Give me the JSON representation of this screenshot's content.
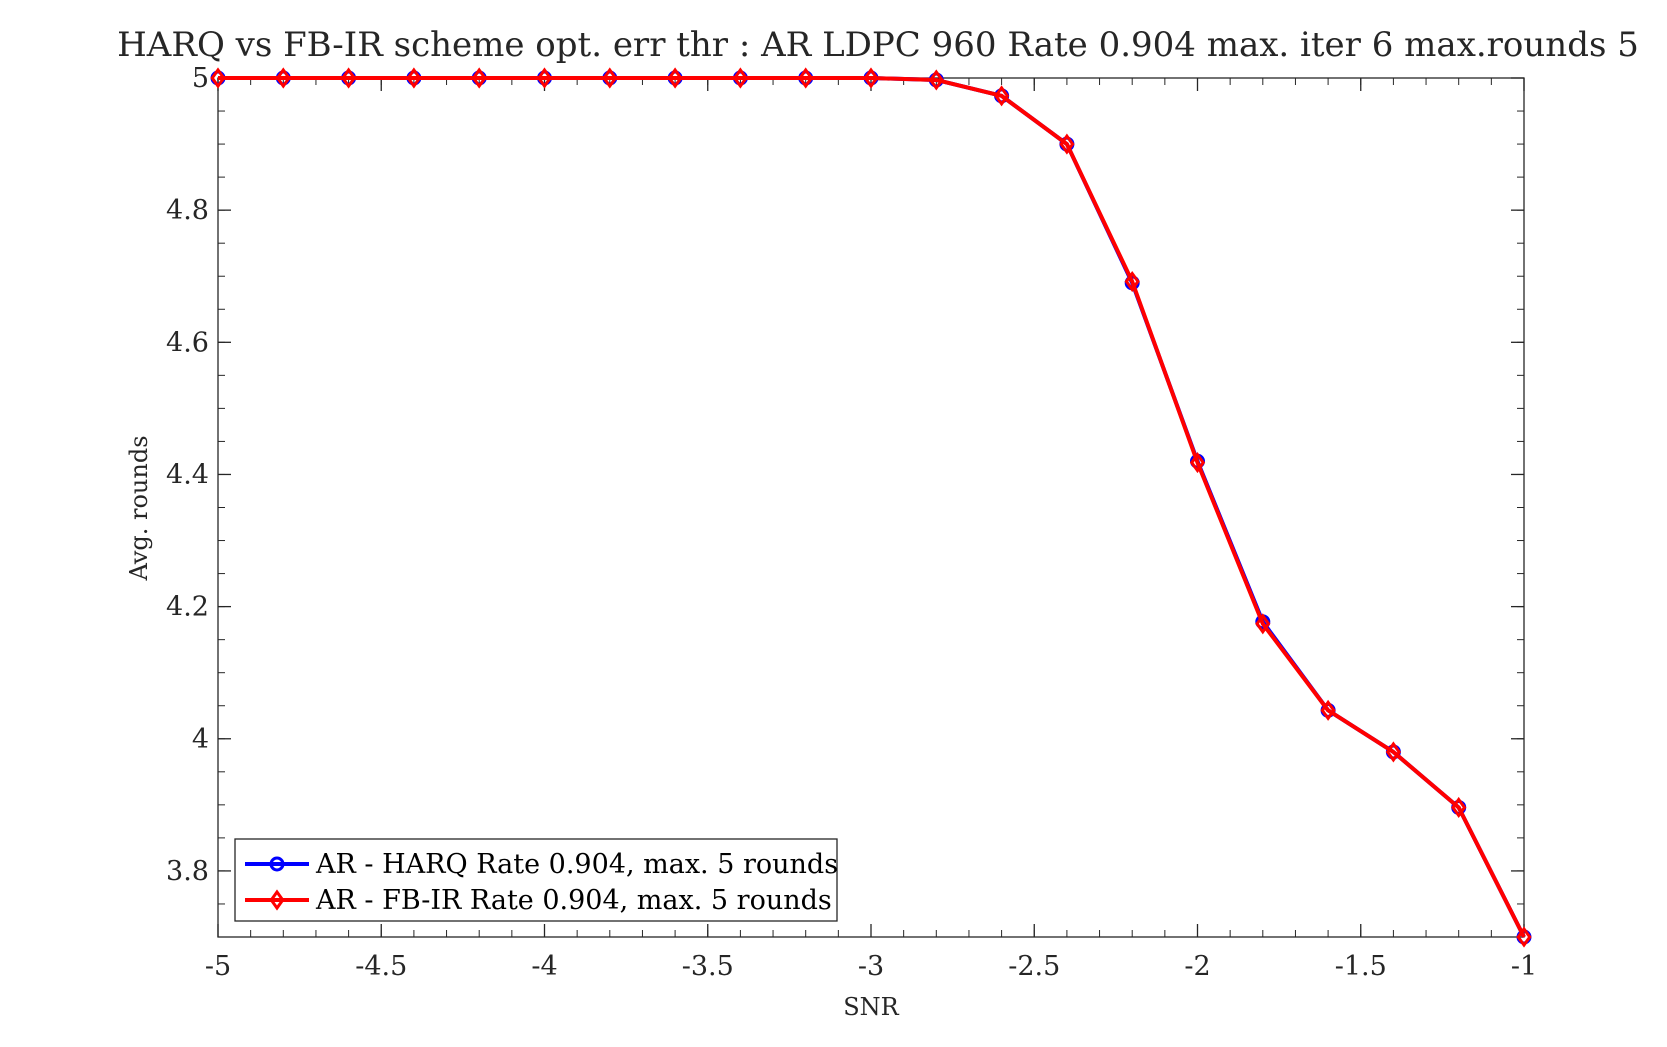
{
  "chart_data": {
    "type": "line",
    "title": "HARQ vs FB-IR scheme opt. err thr : AR LDPC 960 Rate 0.904 max. iter 6 max.rounds 5",
    "xlabel": "SNR",
    "ylabel": "Avg. rounds",
    "xlim": [
      -5,
      -1
    ],
    "ylim": [
      3.7,
      5
    ],
    "xticks": [
      -5,
      -4.5,
      -4,
      -3.5,
      -3,
      -2.5,
      -2,
      -1.5,
      -1
    ],
    "xtick_labels": [
      "-5",
      "-4.5",
      "-4",
      "-3.5",
      "-3",
      "-2.5",
      "-2",
      "-1.5",
      "-1"
    ],
    "yticks": [
      3.8,
      4,
      4.2,
      4.4,
      4.6,
      4.8,
      5
    ],
    "ytick_labels": [
      "3.8",
      "4",
      "4.2",
      "4.4",
      "4.6",
      "4.8",
      "5"
    ],
    "grid": false,
    "legend_position": "bottom-left",
    "x": [
      -5,
      -4.8,
      -4.6,
      -4.4,
      -4.2,
      -4,
      -3.8,
      -3.6,
      -3.4,
      -3.2,
      -3,
      -2.8,
      -2.6,
      -2.4,
      -2.2,
      -2,
      -1.8,
      -1.6,
      -1.4,
      -1.2,
      -1
    ],
    "series": [
      {
        "name": "AR - HARQ Rate 0.904, max. 5 rounds",
        "color": "#0000ff",
        "marker": "circle",
        "values": [
          5,
          5,
          5,
          5,
          5,
          5,
          5,
          5,
          5,
          5,
          5,
          4.997,
          4.973,
          4.9,
          4.69,
          4.42,
          4.177,
          4.043,
          3.98,
          3.896,
          3.7
        ]
      },
      {
        "name": "AR - FB-IR Rate 0.904, max. 5 rounds",
        "color": "#ff0000",
        "marker": "diamond",
        "values": [
          5,
          5,
          5,
          5,
          5,
          5,
          5,
          5,
          5,
          5,
          5,
          4.997,
          4.973,
          4.9,
          4.692,
          4.418,
          4.174,
          4.043,
          3.98,
          3.896,
          3.7
        ]
      }
    ]
  }
}
